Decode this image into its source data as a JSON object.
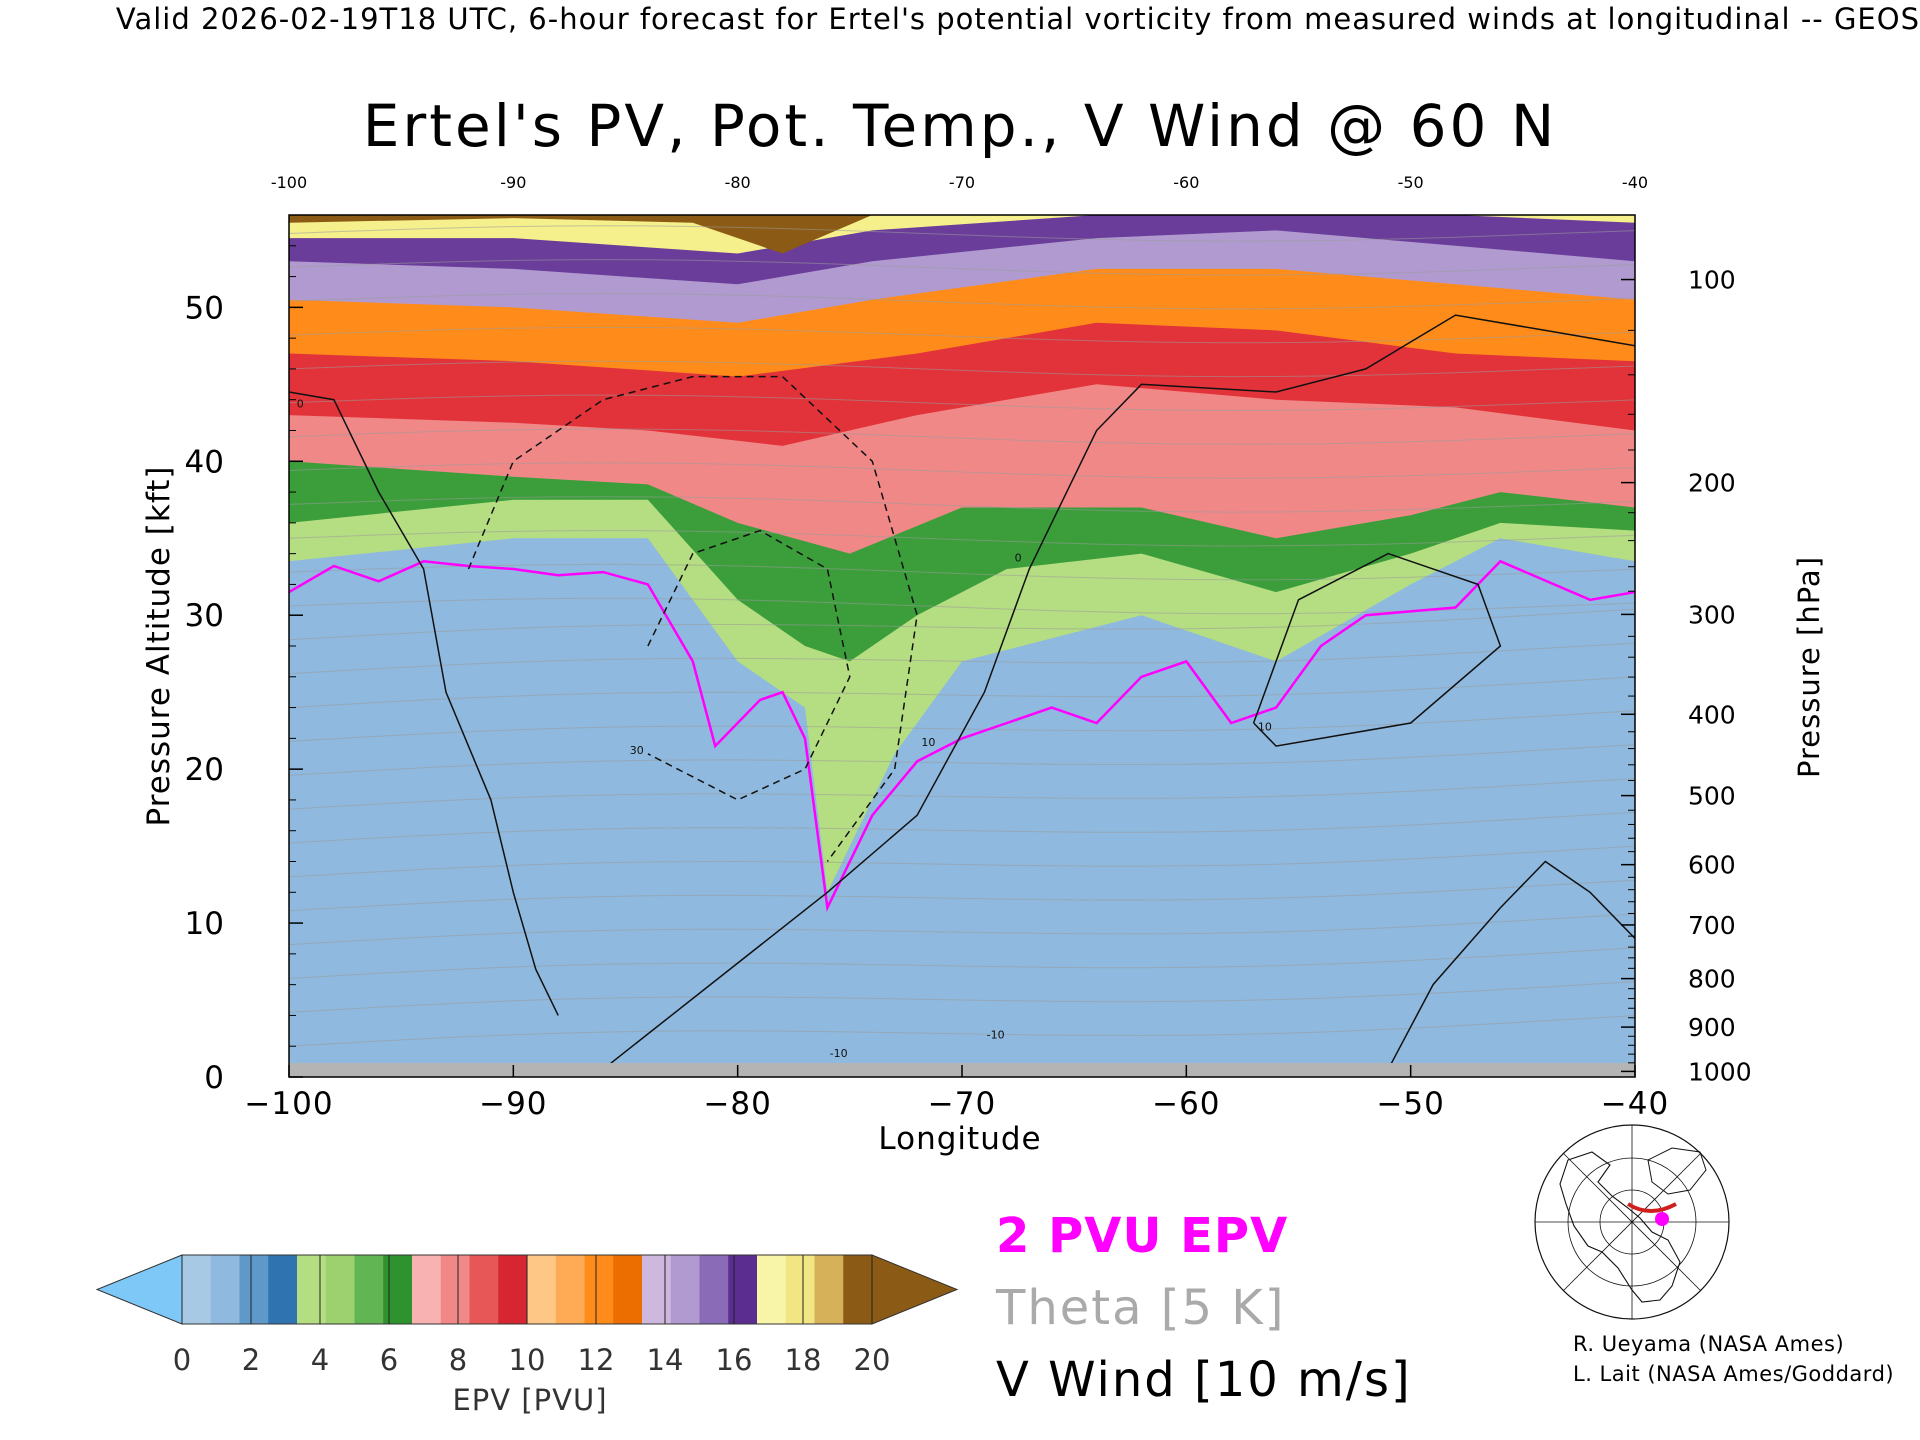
{
  "header": {
    "text": "Valid 2026-02-19T18 UTC, 6-hour forecast for Ertel's potential vorticity from measured winds at longitudinal -- GEOS"
  },
  "chart_data": {
    "type": "heatmap",
    "title": "Ertel's PV, Pot. Temp., V Wind @ 60 N",
    "xlabel": "Longitude",
    "ylabel": "Pressure Altitude [kft]",
    "y2label": "Pressure [hPa]",
    "xlim": [
      -100,
      -40
    ],
    "ylim": [
      0,
      56
    ],
    "x_ticks": [
      -100,
      -90,
      -80,
      -70,
      -60,
      -50,
      -40
    ],
    "x_tick_labels": [
      "−100",
      "−90",
      "−80",
      "−70",
      "−60",
      "−50",
      "−40"
    ],
    "x_top_tick_labels": [
      "-100",
      "-90",
      "-80",
      "-70",
      "-60",
      "-50",
      "-40"
    ],
    "y_ticks": [
      0,
      10,
      20,
      30,
      40,
      50
    ],
    "y_tick_labels": [
      "0",
      "10",
      "20",
      "30",
      "40",
      "50"
    ],
    "pressure_ticks": [
      {
        "label": "100",
        "hpa": 100
      },
      {
        "label": "200",
        "hpa": 200
      },
      {
        "label": "300",
        "hpa": 300
      },
      {
        "label": "400",
        "hpa": 400
      },
      {
        "label": "500",
        "hpa": 500
      },
      {
        "label": "600",
        "hpa": 600
      },
      {
        "label": "700",
        "hpa": 700
      },
      {
        "label": "800",
        "hpa": 800
      },
      {
        "label": "900",
        "hpa": 900
      },
      {
        "label": "1000",
        "hpa": 1000
      }
    ],
    "tropopause_2pvu_kft": [
      {
        "lon": -100,
        "kft": 31.5
      },
      {
        "lon": -98,
        "kft": 33.2
      },
      {
        "lon": -96,
        "kft": 32.2
      },
      {
        "lon": -94,
        "kft": 33.5
      },
      {
        "lon": -92,
        "kft": 33.2
      },
      {
        "lon": -90,
        "kft": 33.0
      },
      {
        "lon": -88,
        "kft": 32.6
      },
      {
        "lon": -86,
        "kft": 32.8
      },
      {
        "lon": -84,
        "kft": 32.0
      },
      {
        "lon": -82,
        "kft": 27.0
      },
      {
        "lon": -81,
        "kft": 21.5
      },
      {
        "lon": -79,
        "kft": 24.5
      },
      {
        "lon": -78,
        "kft": 25.0
      },
      {
        "lon": -77,
        "kft": 22.0
      },
      {
        "lon": -76,
        "kft": 11.0
      },
      {
        "lon": -74,
        "kft": 17.0
      },
      {
        "lon": -72,
        "kft": 20.5
      },
      {
        "lon": -70,
        "kft": 22.0
      },
      {
        "lon": -68,
        "kft": 23.0
      },
      {
        "lon": -66,
        "kft": 24.0
      },
      {
        "lon": -64,
        "kft": 23.0
      },
      {
        "lon": -62,
        "kft": 26.0
      },
      {
        "lon": -60,
        "kft": 27.0
      },
      {
        "lon": -58,
        "kft": 23.0
      },
      {
        "lon": -56,
        "kft": 24.0
      },
      {
        "lon": -54,
        "kft": 28.0
      },
      {
        "lon": -52,
        "kft": 30.0
      },
      {
        "lon": -48,
        "kft": 30.5
      },
      {
        "lon": -46,
        "kft": 33.5
      },
      {
        "lon": -42,
        "kft": 31.0
      },
      {
        "lon": -40,
        "kft": 31.5
      }
    ],
    "pv_bands_kft": [
      {
        "pvu": 2,
        "color": "#b5dd82",
        "profile": [
          {
            "lon": -100,
            "kft": 33.5
          },
          {
            "lon": -90,
            "kft": 35.0
          },
          {
            "lon": -84,
            "kft": 35.0
          },
          {
            "lon": -80,
            "kft": 27.0
          },
          {
            "lon": -77,
            "kft": 24.0
          },
          {
            "lon": -76,
            "kft": 12.0
          },
          {
            "lon": -73,
            "kft": 21.0
          },
          {
            "lon": -70,
            "kft": 27.0
          },
          {
            "lon": -62,
            "kft": 30.0
          },
          {
            "lon": -56,
            "kft": 27.0
          },
          {
            "lon": -50,
            "kft": 32.0
          },
          {
            "lon": -46,
            "kft": 35.0
          },
          {
            "lon": -40,
            "kft": 33.5
          }
        ]
      },
      {
        "pvu": 5,
        "color": "#3b9e3b",
        "profile": [
          {
            "lon": -100,
            "kft": 36.0
          },
          {
            "lon": -90,
            "kft": 37.5
          },
          {
            "lon": -84,
            "kft": 37.5
          },
          {
            "lon": -80,
            "kft": 31.0
          },
          {
            "lon": -77,
            "kft": 28.0
          },
          {
            "lon": -75,
            "kft": 27.0
          },
          {
            "lon": -72,
            "kft": 30.0
          },
          {
            "lon": -68,
            "kft": 33.0
          },
          {
            "lon": -62,
            "kft": 34.0
          },
          {
            "lon": -56,
            "kft": 31.5
          },
          {
            "lon": -50,
            "kft": 34.0
          },
          {
            "lon": -46,
            "kft": 36.0
          },
          {
            "lon": -40,
            "kft": 35.5
          }
        ]
      },
      {
        "pvu": 8,
        "color": "#f08888",
        "profile": [
          {
            "lon": -100,
            "kft": 40.0
          },
          {
            "lon": -90,
            "kft": 39.0
          },
          {
            "lon": -84,
            "kft": 38.5
          },
          {
            "lon": -80,
            "kft": 36.0
          },
          {
            "lon": -75,
            "kft": 34.0
          },
          {
            "lon": -70,
            "kft": 37.0
          },
          {
            "lon": -62,
            "kft": 37.0
          },
          {
            "lon": -56,
            "kft": 35.0
          },
          {
            "lon": -50,
            "kft": 36.5
          },
          {
            "lon": -46,
            "kft": 38.0
          },
          {
            "lon": -40,
            "kft": 37.0
          }
        ]
      },
      {
        "pvu": 10,
        "color": "#e2333a",
        "profile": [
          {
            "lon": -100,
            "kft": 43.0
          },
          {
            "lon": -90,
            "kft": 42.5
          },
          {
            "lon": -84,
            "kft": 42.0
          },
          {
            "lon": -78,
            "kft": 41.0
          },
          {
            "lon": -72,
            "kft": 43.0
          },
          {
            "lon": -64,
            "kft": 45.0
          },
          {
            "lon": -56,
            "kft": 44.0
          },
          {
            "lon": -48,
            "kft": 43.5
          },
          {
            "lon": -40,
            "kft": 42.0
          }
        ]
      },
      {
        "pvu": 12,
        "color": "#ff8c1a",
        "profile": [
          {
            "lon": -100,
            "kft": 47.0
          },
          {
            "lon": -90,
            "kft": 46.5
          },
          {
            "lon": -80,
            "kft": 45.5
          },
          {
            "lon": -72,
            "kft": 47.0
          },
          {
            "lon": -64,
            "kft": 49.0
          },
          {
            "lon": -56,
            "kft": 48.5
          },
          {
            "lon": -48,
            "kft": 47.0
          },
          {
            "lon": -40,
            "kft": 46.5
          }
        ]
      },
      {
        "pvu": 14,
        "color": "#b09ad0",
        "profile": [
          {
            "lon": -100,
            "kft": 50.5
          },
          {
            "lon": -90,
            "kft": 50.0
          },
          {
            "lon": -80,
            "kft": 49.0
          },
          {
            "lon": -74,
            "kft": 50.5
          },
          {
            "lon": -64,
            "kft": 52.5
          },
          {
            "lon": -56,
            "kft": 52.5
          },
          {
            "lon": -48,
            "kft": 51.5
          },
          {
            "lon": -40,
            "kft": 50.5
          }
        ]
      },
      {
        "pvu": 16,
        "color": "#6a3d9a",
        "profile": [
          {
            "lon": -100,
            "kft": 53.0
          },
          {
            "lon": -90,
            "kft": 52.5
          },
          {
            "lon": -80,
            "kft": 51.5
          },
          {
            "lon": -74,
            "kft": 53.0
          },
          {
            "lon": -64,
            "kft": 54.5
          },
          {
            "lon": -56,
            "kft": 55.0
          },
          {
            "lon": -48,
            "kft": 54.0
          },
          {
            "lon": -40,
            "kft": 53.0
          }
        ]
      },
      {
        "pvu": 18,
        "color": "#f5ef8c",
        "profile": [
          {
            "lon": -100,
            "kft": 54.5
          },
          {
            "lon": -90,
            "kft": 54.5
          },
          {
            "lon": -80,
            "kft": 53.5
          },
          {
            "lon": -74,
            "kft": 55.0
          },
          {
            "lon": -64,
            "kft": 56.0
          },
          {
            "lon": -56,
            "kft": 56.0
          },
          {
            "lon": -48,
            "kft": 56.0
          },
          {
            "lon": -40,
            "kft": 55.5
          }
        ]
      },
      {
        "pvu": 20,
        "color": "#8b5a14",
        "profile": [
          {
            "lon": -100,
            "kft": 55.5
          },
          {
            "lon": -90,
            "kft": 55.8
          },
          {
            "lon": -82,
            "kft": 55.5
          },
          {
            "lon": -78,
            "kft": 53.5
          },
          {
            "lon": -74,
            "kft": 56.0
          },
          {
            "lon": -40,
            "kft": 56.0
          }
        ]
      }
    ],
    "v_wind_contours": [
      {
        "label": "0",
        "style": "solid",
        "points": [
          {
            "lon": -100,
            "kft": 44.5
          },
          {
            "lon": -98,
            "kft": 44.0
          },
          {
            "lon": -96,
            "kft": 38.0
          },
          {
            "lon": -94,
            "kft": 33.0
          },
          {
            "lon": -93,
            "kft": 25.0
          },
          {
            "lon": -91,
            "kft": 18.0
          },
          {
            "lon": -90,
            "kft": 12.0
          },
          {
            "lon": -89,
            "kft": 7.0
          },
          {
            "lon": -88,
            "kft": 4.0
          }
        ]
      },
      {
        "label": "0",
        "style": "solid",
        "points": [
          {
            "lon": -86,
            "kft": 0.5
          },
          {
            "lon": -76,
            "kft": 12.0
          },
          {
            "lon": -72,
            "kft": 17.0
          },
          {
            "lon": -69,
            "kft": 25.0
          },
          {
            "lon": -67,
            "kft": 33.0
          },
          {
            "lon": -64,
            "kft": 42.0
          },
          {
            "lon": -62,
            "kft": 45.0
          },
          {
            "lon": -56,
            "kft": 44.5
          },
          {
            "lon": -52,
            "kft": 46.0
          },
          {
            "lon": -48,
            "kft": 49.5
          },
          {
            "lon": -44,
            "kft": 48.5
          },
          {
            "lon": -40,
            "kft": 47.5
          }
        ]
      },
      {
        "label": "10",
        "style": "dashed",
        "points": [
          {
            "lon": -92,
            "kft": 33.0
          },
          {
            "lon": -90,
            "kft": 40.0
          },
          {
            "lon": -86,
            "kft": 44.0
          },
          {
            "lon": -82,
            "kft": 45.5
          },
          {
            "lon": -78,
            "kft": 45.5
          },
          {
            "lon": -74,
            "kft": 40.0
          },
          {
            "lon": -72,
            "kft": 30.0
          },
          {
            "lon": -73,
            "kft": 20.0
          },
          {
            "lon": -76,
            "kft": 14.0
          }
        ]
      },
      {
        "label": "30",
        "style": "dashed",
        "points": [
          {
            "lon": -84,
            "kft": 28.0
          },
          {
            "lon": -82,
            "kft": 34.0
          },
          {
            "lon": -79,
            "kft": 35.5
          },
          {
            "lon": -76,
            "kft": 33.0
          },
          {
            "lon": -75,
            "kft": 26.0
          },
          {
            "lon": -77,
            "kft": 20.0
          },
          {
            "lon": -80,
            "kft": 18.0
          },
          {
            "lon": -84,
            "kft": 21.0
          }
        ]
      },
      {
        "label": "10",
        "style": "solid",
        "points": [
          {
            "lon": -57,
            "kft": 23.0
          },
          {
            "lon": -55,
            "kft": 31.0
          },
          {
            "lon": -51,
            "kft": 34.0
          },
          {
            "lon": -47,
            "kft": 32.0
          },
          {
            "lon": -46,
            "kft": 28.0
          },
          {
            "lon": -50,
            "kft": 23.0
          },
          {
            "lon": -56,
            "kft": 21.5
          },
          {
            "lon": -57,
            "kft": 23.0
          }
        ]
      },
      {
        "label": "0",
        "style": "solid",
        "points": [
          {
            "lon": -51,
            "kft": 0.5
          },
          {
            "lon": -49,
            "kft": 6.0
          },
          {
            "lon": -46,
            "kft": 11.0
          },
          {
            "lon": -44,
            "kft": 14.0
          },
          {
            "lon": -42,
            "kft": 12.0
          },
          {
            "lon": -40,
            "kft": 9.0
          }
        ]
      }
    ],
    "contour_labels": [
      {
        "text": "30",
        "lon": -84.5,
        "kft": 21.0
      },
      {
        "text": "10",
        "lon": -71.5,
        "kft": 21.5
      },
      {
        "text": "10",
        "lon": -56.5,
        "kft": 22.5
      },
      {
        "text": "-10",
        "lon": -75.5,
        "kft": 1.3
      },
      {
        "text": "-10",
        "lon": -68.5,
        "kft": 2.5
      },
      {
        "text": "0",
        "lon": -99.5,
        "kft": 43.5
      },
      {
        "text": "0",
        "lon": -67.5,
        "kft": 33.5
      }
    ],
    "colorbar": {
      "label": "EPV [PVU]",
      "tick_labels": [
        "0",
        "2",
        "4",
        "6",
        "8",
        "10",
        "12",
        "14",
        "16",
        "18",
        "20"
      ],
      "under_color": "#7dc8f7",
      "over_color": "#8b5a14",
      "colors": [
        "#a7c9e4",
        "#8fb9de",
        "#5e99ca",
        "#2f74b0",
        "#b5dd82",
        "#9dd16f",
        "#62b553",
        "#2e922e",
        "#f9b2b2",
        "#f08888",
        "#e85757",
        "#d62632",
        "#ffc785",
        "#ffaa55",
        "#ff8c1a",
        "#ec6d00",
        "#cfb8dd",
        "#b09ad0",
        "#8a6bb8",
        "#5b2d91",
        "#f8f5a8",
        "#f2e584",
        "#d7b05a",
        "#8b5a14"
      ]
    },
    "legend_entries": [
      {
        "text": "2 PVU EPV",
        "color": "#ff00ff"
      },
      {
        "text": "Theta [5 K]",
        "color": "#aaaaaa"
      },
      {
        "text": "V Wind [10 m/s]",
        "color": "#000000"
      }
    ]
  },
  "credits": {
    "line1": "R. Ueyama (NASA Ames)",
    "line2": "L. Lait (NASA Ames/Goddard)"
  },
  "inset_map": {
    "section_line_color": "#d0201e",
    "marker_color": "#ff00ff"
  }
}
